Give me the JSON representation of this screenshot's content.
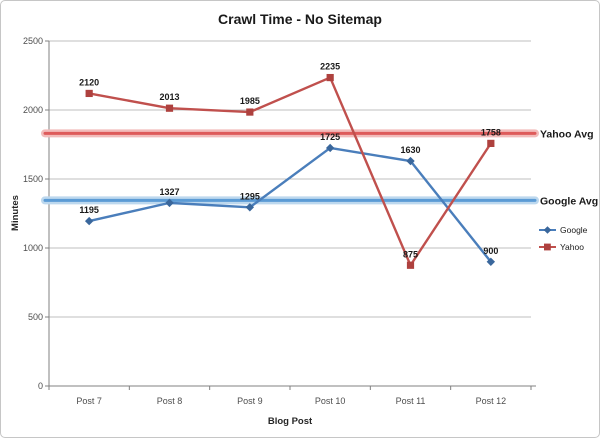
{
  "frame": {
    "background": "#ffffff",
    "border_color": "#c6c6c6"
  },
  "chart_data": {
    "type": "line",
    "title": "Crawl Time - No Sitemap",
    "xlabel": "Blog Post",
    "ylabel": "Minutes",
    "categories": [
      "Post 7",
      "Post 8",
      "Post 9",
      "Post 10",
      "Post 11",
      "Post 12"
    ],
    "series": [
      {
        "name": "Google",
        "values": [
          1195,
          1327,
          1295,
          1725,
          1630,
          900
        ],
        "color": "#4A7EBB",
        "marker_color": "#3A679C",
        "marker": "diamond"
      },
      {
        "name": "Yahoo",
        "values": [
          2120,
          2013,
          1985,
          2235,
          875,
          1758
        ],
        "color": "#C0504D",
        "marker_color": "#AE413E",
        "marker": "square"
      }
    ],
    "avg_lines": [
      {
        "label": "Yahoo Avg",
        "value": 1831,
        "color": "#DE5B5B",
        "halo": "#F2BCBB"
      },
      {
        "label": "Google Avg",
        "value": 1345,
        "color": "#5B9BD5",
        "halo": "#BDD8EE"
      }
    ],
    "ylim": [
      0,
      2500
    ],
    "ytick_step": 500,
    "grid": true,
    "legend_position": "right",
    "grid_color": "#BFBFBF",
    "axis_color": "#808080"
  }
}
